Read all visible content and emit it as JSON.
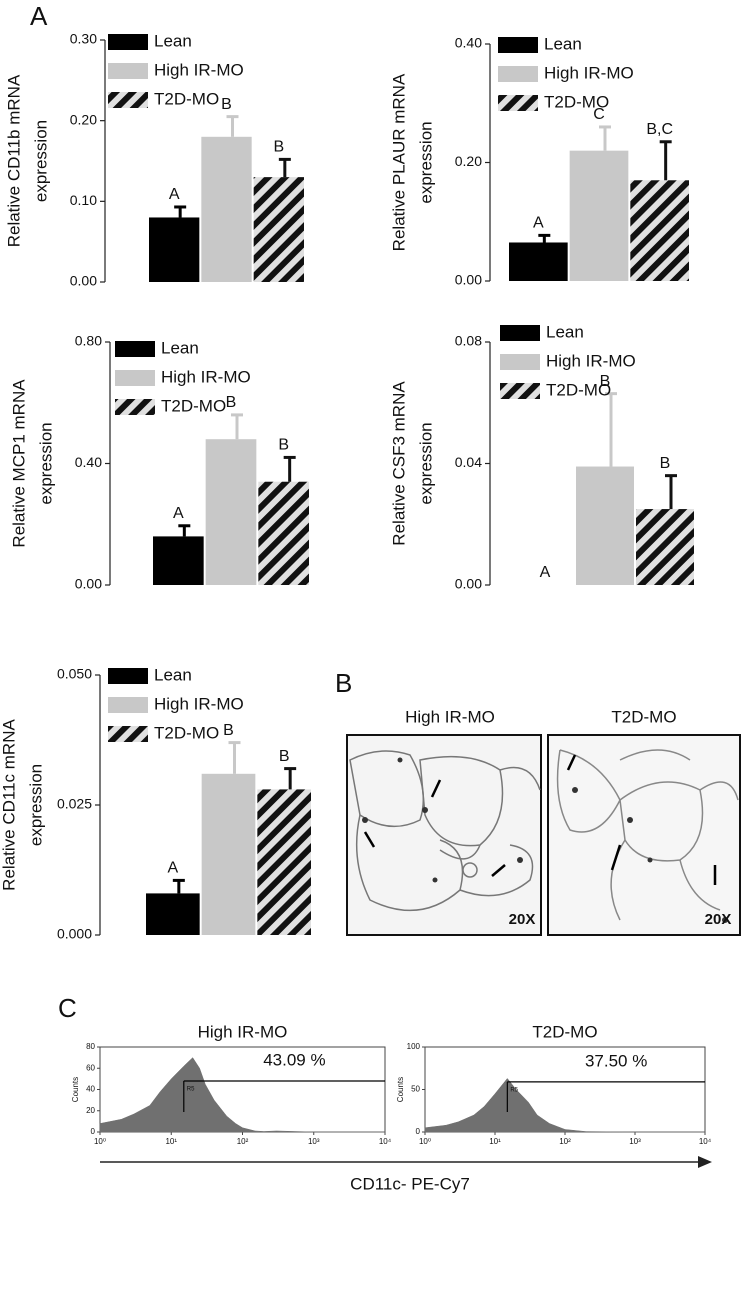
{
  "panel_labels": [
    "A",
    "B",
    "C"
  ],
  "micrographs": [
    {
      "title": "High IR-MO",
      "magnification": "20X"
    },
    {
      "title": "T2D-MO",
      "magnification": "20X"
    }
  ],
  "flow_axis_label": "CD11c- PE-Cy7",
  "chart_data": [
    {
      "type": "bar",
      "ylabel": [
        "Relative CD11b mRNA",
        "expression"
      ],
      "ylim": [
        0,
        0.3
      ],
      "yticks": [
        {
          "value": 0,
          "label": "0.00"
        },
        {
          "value": 0.1,
          "label": "0.10"
        },
        {
          "value": 0.2,
          "label": "0.20"
        },
        {
          "value": 0.3,
          "label": "0.30"
        }
      ],
      "series": [
        {
          "name": "Lean",
          "color": "#000000",
          "values": [
            0.08
          ],
          "errors": [
            0.013
          ]
        },
        {
          "name": "High IR-MO",
          "color": "#c8c8c8",
          "values": [
            0.18
          ],
          "errors": [
            0.025
          ]
        },
        {
          "name": "T2D-MO",
          "color": "#111111",
          "pattern": "hatch",
          "values": [
            0.13
          ],
          "errors": [
            0.022
          ]
        }
      ],
      "annotations": [
        "A",
        "B",
        "B"
      ]
    },
    {
      "type": "bar",
      "ylabel": [
        "Relative PLAUR mRNA",
        "expression"
      ],
      "ylim": [
        0,
        0.4
      ],
      "yticks": [
        {
          "value": 0,
          "label": "0.00"
        },
        {
          "value": 0.2,
          "label": "0.20"
        },
        {
          "value": 0.4,
          "label": "0.40"
        }
      ],
      "series": [
        {
          "name": "Lean",
          "color": "#000000",
          "values": [
            0.065
          ],
          "errors": [
            0.012
          ]
        },
        {
          "name": "High IR-MO",
          "color": "#c8c8c8",
          "values": [
            0.22
          ],
          "errors": [
            0.04
          ]
        },
        {
          "name": "T2D-MO",
          "color": "#111111",
          "pattern": "hatch",
          "values": [
            0.17
          ],
          "errors": [
            0.065
          ]
        }
      ],
      "annotations": [
        "A",
        "C",
        "B,C"
      ]
    },
    {
      "type": "bar",
      "ylabel": [
        "Relative MCP1 mRNA",
        "expression"
      ],
      "ylim": [
        0,
        0.8
      ],
      "yticks": [
        {
          "value": 0,
          "label": "0.00"
        },
        {
          "value": 0.4,
          "label": "0.40"
        },
        {
          "value": 0.8,
          "label": "0.80"
        }
      ],
      "series": [
        {
          "name": "Lean",
          "color": "#000000",
          "values": [
            0.16
          ],
          "errors": [
            0.035
          ]
        },
        {
          "name": "High IR-MO",
          "color": "#c8c8c8",
          "values": [
            0.48
          ],
          "errors": [
            0.08
          ]
        },
        {
          "name": "T2D-MO",
          "color": "#111111",
          "pattern": "hatch",
          "values": [
            0.34
          ],
          "errors": [
            0.08
          ]
        }
      ],
      "annotations": [
        "A",
        "B",
        "B"
      ]
    },
    {
      "type": "bar",
      "ylabel": [
        "Relative CSF3 mRNA",
        "expression"
      ],
      "ylim": [
        0,
        0.08
      ],
      "yticks": [
        {
          "value": 0,
          "label": "0.00"
        },
        {
          "value": 0.04,
          "label": "0.04"
        },
        {
          "value": 0.08,
          "label": "0.08"
        }
      ],
      "series": [
        {
          "name": "Lean",
          "color": "#000000",
          "values": [
            0
          ],
          "errors": [
            null
          ]
        },
        {
          "name": "High IR-MO",
          "color": "#c8c8c8",
          "values": [
            0.039
          ],
          "errors": [
            0.024
          ]
        },
        {
          "name": "T2D-MO",
          "color": "#111111",
          "pattern": "hatch",
          "values": [
            0.025
          ],
          "errors": [
            0.011
          ]
        }
      ],
      "annotations": [
        "A",
        "B",
        "B"
      ]
    },
    {
      "type": "bar",
      "ylabel": [
        "Relative CD11c  mRNA",
        "expression"
      ],
      "ylim": [
        0,
        0.05
      ],
      "yticks": [
        {
          "value": 0,
          "label": "0.000"
        },
        {
          "value": 0.025,
          "label": "0.025"
        },
        {
          "value": 0.05,
          "label": "0.050"
        }
      ],
      "series": [
        {
          "name": "Lean",
          "color": "#000000",
          "values": [
            0.008
          ],
          "errors": [
            0.0025
          ]
        },
        {
          "name": "High IR-MO",
          "color": "#c8c8c8",
          "values": [
            0.031
          ],
          "errors": [
            0.006
          ]
        },
        {
          "name": "T2D-MO",
          "color": "#111111",
          "pattern": "hatch",
          "values": [
            0.028
          ],
          "errors": [
            0.004
          ]
        }
      ],
      "annotations": [
        "A",
        "B",
        "B"
      ]
    },
    {
      "type": "area",
      "title": "High IR-MO",
      "ylabel": "Counts",
      "color": "#707070",
      "xscale": "log",
      "xlim": [
        1,
        10000
      ],
      "xticks": [
        {
          "value": 1,
          "label": "10⁰"
        },
        {
          "value": 10,
          "label": "10¹"
        },
        {
          "value": 100,
          "label": "10²"
        },
        {
          "value": 1000,
          "label": "10³"
        },
        {
          "value": 10000,
          "label": "10⁴"
        }
      ],
      "ylim": [
        0,
        80
      ],
      "yticks": [
        0,
        20,
        40,
        60,
        80
      ],
      "x": [
        1,
        2,
        3,
        5,
        7,
        10,
        15,
        20,
        25,
        30,
        40,
        60,
        80,
        100,
        150,
        200,
        300,
        1000,
        10000
      ],
      "values": [
        8,
        12,
        17,
        25,
        38,
        50,
        62,
        70,
        60,
        45,
        30,
        15,
        8,
        4,
        1,
        0.5,
        1,
        0,
        0
      ],
      "gate": {
        "name": "R5",
        "x": [
          15,
          10000
        ],
        "y": 48,
        "label": "43.09 %"
      }
    },
    {
      "type": "area",
      "title": "T2D-MO",
      "ylabel": "Counts",
      "color": "#707070",
      "xscale": "log",
      "xlim": [
        1,
        10000
      ],
      "xticks": [
        {
          "value": 1,
          "label": "10⁰"
        },
        {
          "value": 10,
          "label": "10¹"
        },
        {
          "value": 100,
          "label": "10²"
        },
        {
          "value": 1000,
          "label": "10³"
        },
        {
          "value": 10000,
          "label": "10⁴"
        }
      ],
      "ylim": [
        0,
        100
      ],
      "yticks": [
        0,
        50,
        100
      ],
      "x": [
        1,
        2,
        3,
        5,
        7,
        10,
        15,
        20,
        30,
        40,
        60,
        100,
        200,
        1000,
        10000
      ],
      "values": [
        5,
        8,
        12,
        20,
        30,
        45,
        63,
        50,
        35,
        20,
        10,
        3,
        0.5,
        0,
        0
      ],
      "gate": {
        "name": "R5",
        "x": [
          15,
          10000
        ],
        "y": 59,
        "label": "37.50 %"
      }
    }
  ]
}
